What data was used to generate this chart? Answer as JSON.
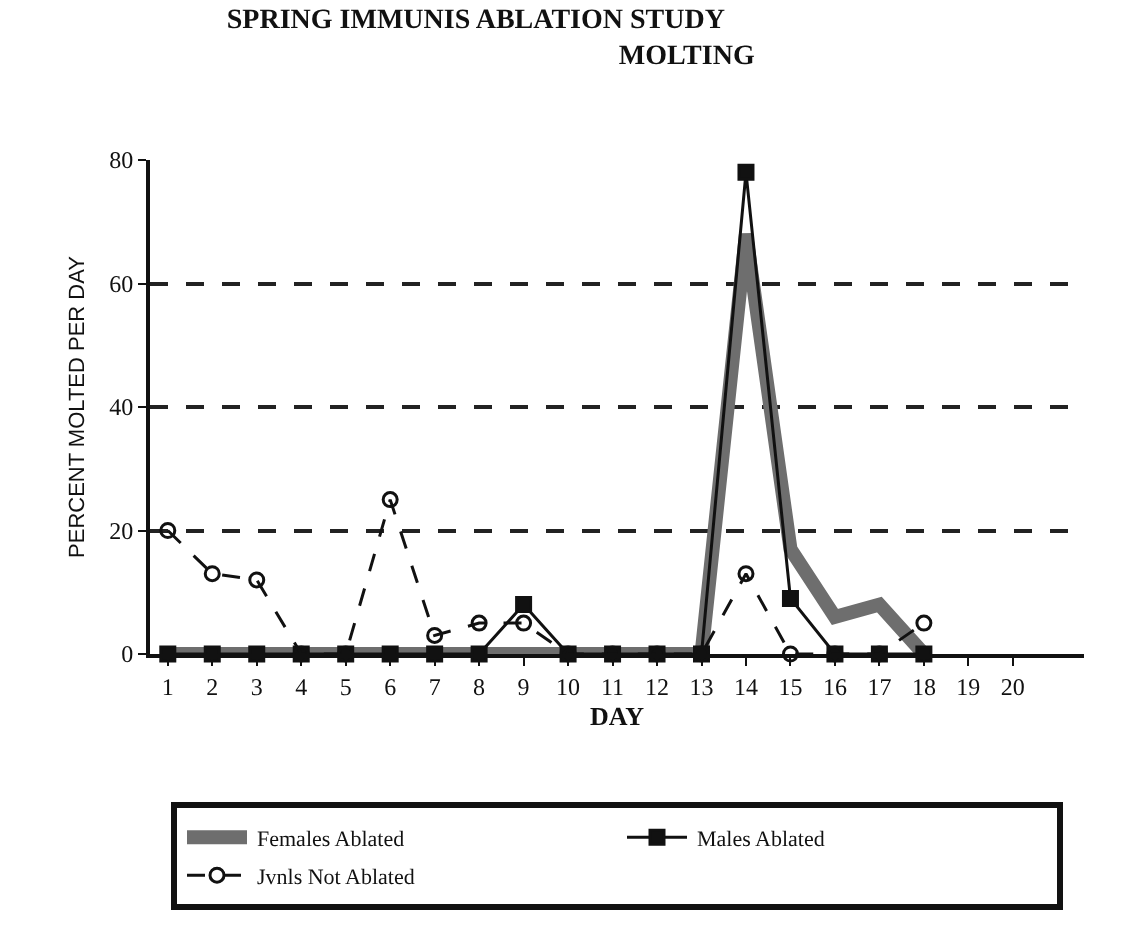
{
  "chart_data": {
    "type": "line",
    "title": "SPRING IMMUNIS ABLATION STUDY",
    "subtitle": "MOLTING",
    "xlabel": "DAY",
    "ylabel": "PERCENT MOLTED PER DAY",
    "x": [
      1,
      2,
      3,
      4,
      5,
      6,
      7,
      8,
      9,
      10,
      11,
      12,
      13,
      14,
      15,
      16,
      17,
      18
    ],
    "series": [
      {
        "name": "Males Ablated",
        "color": "#111111",
        "marker": "square",
        "line_style": "solid",
        "values": [
          0,
          0,
          0,
          0,
          0,
          0,
          0,
          0,
          8,
          0,
          0,
          0,
          0,
          78,
          9,
          0,
          0,
          0
        ]
      },
      {
        "name": "Females Ablated",
        "color": "#6e6e6e",
        "marker": "none",
        "line_style": "solid",
        "values": [
          0,
          0,
          0,
          0,
          0,
          0,
          0,
          0,
          0,
          0,
          0,
          0,
          0,
          68,
          17,
          6,
          8,
          0
        ]
      },
      {
        "name": "Jvnls Not Ablated",
        "color": "#111111",
        "marker": "circle",
        "line_style": "dashed",
        "values": [
          20,
          13,
          12,
          0,
          0,
          25,
          3,
          5,
          5,
          0,
          0,
          0,
          0,
          13,
          0,
          0,
          0,
          5
        ]
      }
    ],
    "xlim": [
      0.6,
      21.6
    ],
    "xticks": [
      1,
      2,
      3,
      4,
      5,
      6,
      7,
      8,
      9,
      10,
      11,
      12,
      13,
      14,
      15,
      16,
      17,
      18,
      19,
      20
    ],
    "ylim": [
      0,
      80
    ],
    "yticks": [
      0,
      20,
      40,
      60,
      80
    ],
    "grid": "y",
    "legend": "bottom"
  }
}
